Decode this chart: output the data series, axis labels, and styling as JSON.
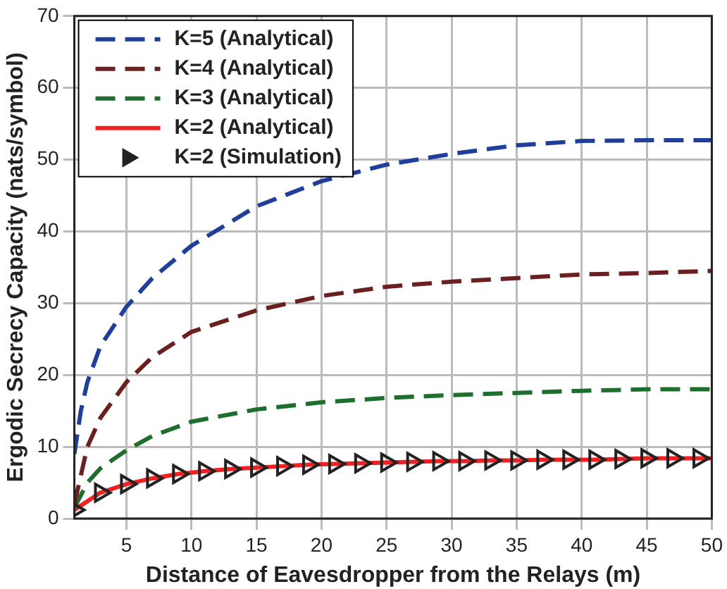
{
  "chart_data": {
    "type": "line",
    "xlabel": "Distance of Eavesdropper from the Relays (m)",
    "ylabel": "Ergodic Secrecy Capacity (nats/symbol)",
    "xlim": [
      1,
      50
    ],
    "xticks": [
      5,
      10,
      15,
      20,
      25,
      30,
      35,
      40,
      45,
      50
    ],
    "ylim": [
      0,
      70
    ],
    "yticks": [
      0,
      10,
      20,
      30,
      40,
      50,
      60,
      70
    ],
    "grid": true,
    "legend": "top left",
    "series": [
      {
        "name": "K=5 (Analytical)",
        "color": "#1f3f9a",
        "line_style": "dashed",
        "marker": "none",
        "x": [
          1,
          1.5,
          2,
          3,
          5,
          7,
          10,
          15,
          20,
          25,
          30,
          35,
          40,
          45,
          50
        ],
        "values": [
          9,
          15,
          19,
          24,
          29.5,
          33.5,
          38,
          43.5,
          47,
          49.3,
          50.8,
          52,
          52.6,
          52.7,
          52.7
        ]
      },
      {
        "name": "K=4 (Analytical)",
        "color": "#6b1f1f",
        "line_style": "dashed",
        "marker": "none",
        "x": [
          1,
          2,
          3,
          5,
          7,
          10,
          15,
          20,
          25,
          30,
          35,
          40,
          45,
          50
        ],
        "values": [
          2,
          10,
          14,
          19,
          22.5,
          26,
          29,
          31,
          32.3,
          33,
          33.5,
          34,
          34.2,
          34.5
        ]
      },
      {
        "name": "K=3 (Analytical)",
        "color": "#1e6e2e",
        "line_style": "dashed",
        "marker": "none",
        "x": [
          1,
          2,
          3,
          5,
          7,
          10,
          15,
          20,
          25,
          30,
          35,
          40,
          45,
          50
        ],
        "values": [
          1.5,
          5,
          7,
          9.5,
          11.5,
          13.5,
          15.2,
          16.2,
          16.8,
          17.2,
          17.5,
          17.8,
          18,
          18
        ]
      },
      {
        "name": "K=2 (Analytical)",
        "color": "#ee2222",
        "line_style": "solid",
        "marker": "none",
        "x": [
          1,
          3,
          5,
          7,
          9,
          11,
          13,
          15,
          17,
          19,
          21,
          23,
          25,
          27,
          29,
          31,
          33,
          35,
          37,
          39,
          41,
          43,
          45,
          47,
          49,
          50
        ],
        "values": [
          1.2,
          3.6,
          4.8,
          5.6,
          6.2,
          6.6,
          6.9,
          7.1,
          7.3,
          7.5,
          7.6,
          7.7,
          7.8,
          7.9,
          8.0,
          8.0,
          8.1,
          8.1,
          8.2,
          8.2,
          8.2,
          8.3,
          8.4,
          8.4,
          8.4,
          8.4
        ]
      },
      {
        "name": "K=2 (Simulation)",
        "type": "scatter",
        "color": "#222222",
        "marker": "triangle",
        "x": [
          1,
          3,
          5,
          7,
          9,
          11,
          13,
          15,
          17,
          19,
          21,
          23,
          25,
          27,
          29,
          31,
          33,
          35,
          37,
          39,
          41,
          43,
          45,
          47,
          49
        ],
        "values": [
          1.2,
          3.6,
          4.8,
          5.6,
          6.2,
          6.6,
          6.9,
          7.1,
          7.3,
          7.5,
          7.6,
          7.7,
          7.8,
          7.9,
          8.0,
          8.0,
          8.1,
          8.1,
          8.2,
          8.2,
          8.2,
          8.3,
          8.4,
          8.4,
          8.4
        ]
      }
    ]
  }
}
